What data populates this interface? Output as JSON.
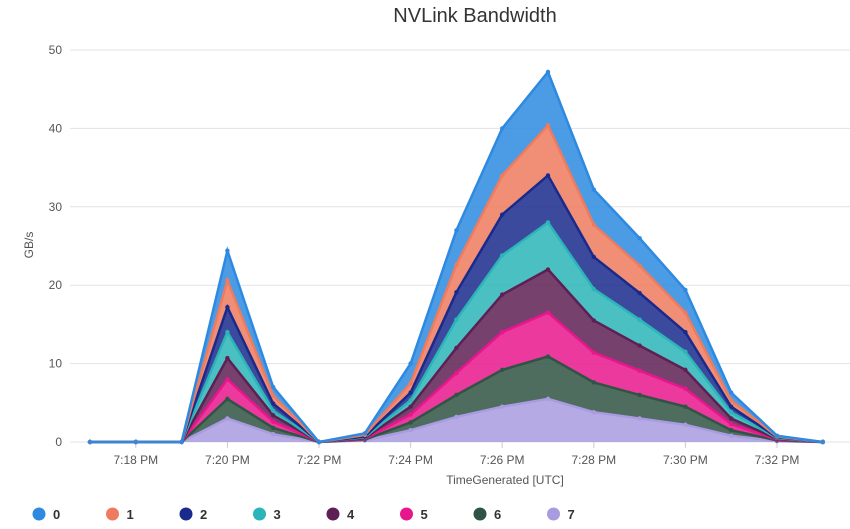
{
  "chart_data": {
    "type": "area",
    "stacked": true,
    "title": "NVLink Bandwidth",
    "xlabel": "TimeGenerated [UTC]",
    "ylabel": "GB/s",
    "ylim": [
      0,
      50
    ],
    "yticks": [
      0,
      10,
      20,
      30,
      40,
      50
    ],
    "grid": true,
    "legend_position": "bottom-left",
    "x_minutes": [
      17,
      18,
      19,
      20,
      21,
      22,
      23,
      24,
      25,
      26,
      27,
      28,
      29,
      30,
      31,
      32,
      33
    ],
    "x_tick_minutes": [
      18,
      20,
      22,
      24,
      26,
      28,
      30,
      32
    ],
    "x_tick_labels": [
      "7:18 PM",
      "7:20 PM",
      "7:22 PM",
      "7:24 PM",
      "7:26 PM",
      "7:28 PM",
      "7:30 PM",
      "7:32 PM"
    ],
    "series": [
      {
        "name": "7",
        "color": "#a99be0",
        "values": [
          0,
          0,
          0,
          3.0,
          1.0,
          0,
          0.2,
          1.5,
          3.2,
          4.5,
          5.5,
          3.8,
          3.0,
          2.2,
          0.8,
          0.1,
          0
        ]
      },
      {
        "name": "6",
        "color": "#2f5443",
        "values": [
          0,
          0,
          0,
          2.5,
          0.8,
          0,
          0.1,
          1.0,
          2.8,
          4.7,
          5.4,
          3.8,
          3.0,
          2.3,
          0.7,
          0.1,
          0
        ]
      },
      {
        "name": "5",
        "color": "#e8168c",
        "values": [
          0,
          0,
          0,
          2.5,
          0.8,
          0,
          0.1,
          1.0,
          2.8,
          4.8,
          5.6,
          3.8,
          3.1,
          2.3,
          0.8,
          0.1,
          0
        ]
      },
      {
        "name": "4",
        "color": "#5e2054",
        "values": [
          0,
          0,
          0,
          2.7,
          0.8,
          0,
          0.1,
          1.0,
          3.2,
          4.8,
          5.5,
          4.1,
          3.2,
          2.4,
          0.7,
          0.1,
          0
        ]
      },
      {
        "name": "3",
        "color": "#2cb5b9",
        "values": [
          0,
          0,
          0,
          3.3,
          0.6,
          0,
          0.1,
          0.8,
          3.6,
          5.0,
          6.0,
          4.0,
          3.3,
          2.3,
          0.8,
          0.1,
          0
        ]
      },
      {
        "name": "2",
        "color": "#1a2a8c",
        "values": [
          0,
          0,
          0,
          3.2,
          0.9,
          0,
          0.1,
          1.0,
          3.5,
          5.2,
          6.0,
          4.1,
          3.4,
          2.5,
          0.7,
          0.1,
          0
        ]
      },
      {
        "name": "1",
        "color": "#ef7b5e",
        "values": [
          0,
          0,
          0,
          3.4,
          1.0,
          0,
          0.2,
          1.2,
          3.5,
          5.0,
          6.4,
          4.1,
          3.5,
          2.5,
          0.8,
          0.1,
          0
        ]
      },
      {
        "name": "0",
        "color": "#2d8ae0",
        "values": [
          0,
          0,
          0,
          3.8,
          1.1,
          0,
          0.2,
          2.5,
          4.4,
          6.0,
          6.8,
          4.5,
          3.5,
          2.9,
          1.0,
          0.1,
          0
        ]
      }
    ],
    "legend_order": [
      "0",
      "1",
      "2",
      "3",
      "4",
      "5",
      "6",
      "7"
    ]
  }
}
